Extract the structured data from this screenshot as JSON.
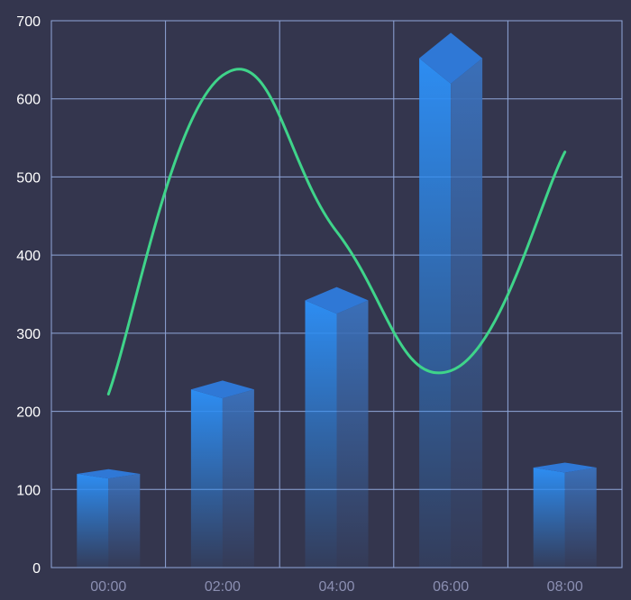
{
  "chart_data": {
    "type": "bar",
    "categories": [
      "00:00",
      "02:00",
      "04:00",
      "06:00",
      "08:00"
    ],
    "series": [
      {
        "type": "bar",
        "values": [
          120,
          228,
          342,
          652,
          128
        ]
      },
      {
        "type": "line",
        "values": [
          222,
          630,
          430,
          252,
          532
        ]
      }
    ],
    "xlabel": "",
    "ylabel": "",
    "ylim": [
      0,
      700
    ],
    "y_ticks": [
      "0",
      "100",
      "200",
      "300",
      "400",
      "500",
      "600",
      "700"
    ],
    "grid": true,
    "bar_style": "3d-gradient",
    "line_smooth": true
  },
  "colors": {
    "background": "#34364e",
    "grid": "#8fa6d9",
    "bar_front": "#2d8df2",
    "bar_side": "#3a6fb8",
    "bar_top": "#2f78d6",
    "line": "#3fd48a",
    "tick_y": "#ffffff",
    "tick_x": "#8b8fb2"
  }
}
